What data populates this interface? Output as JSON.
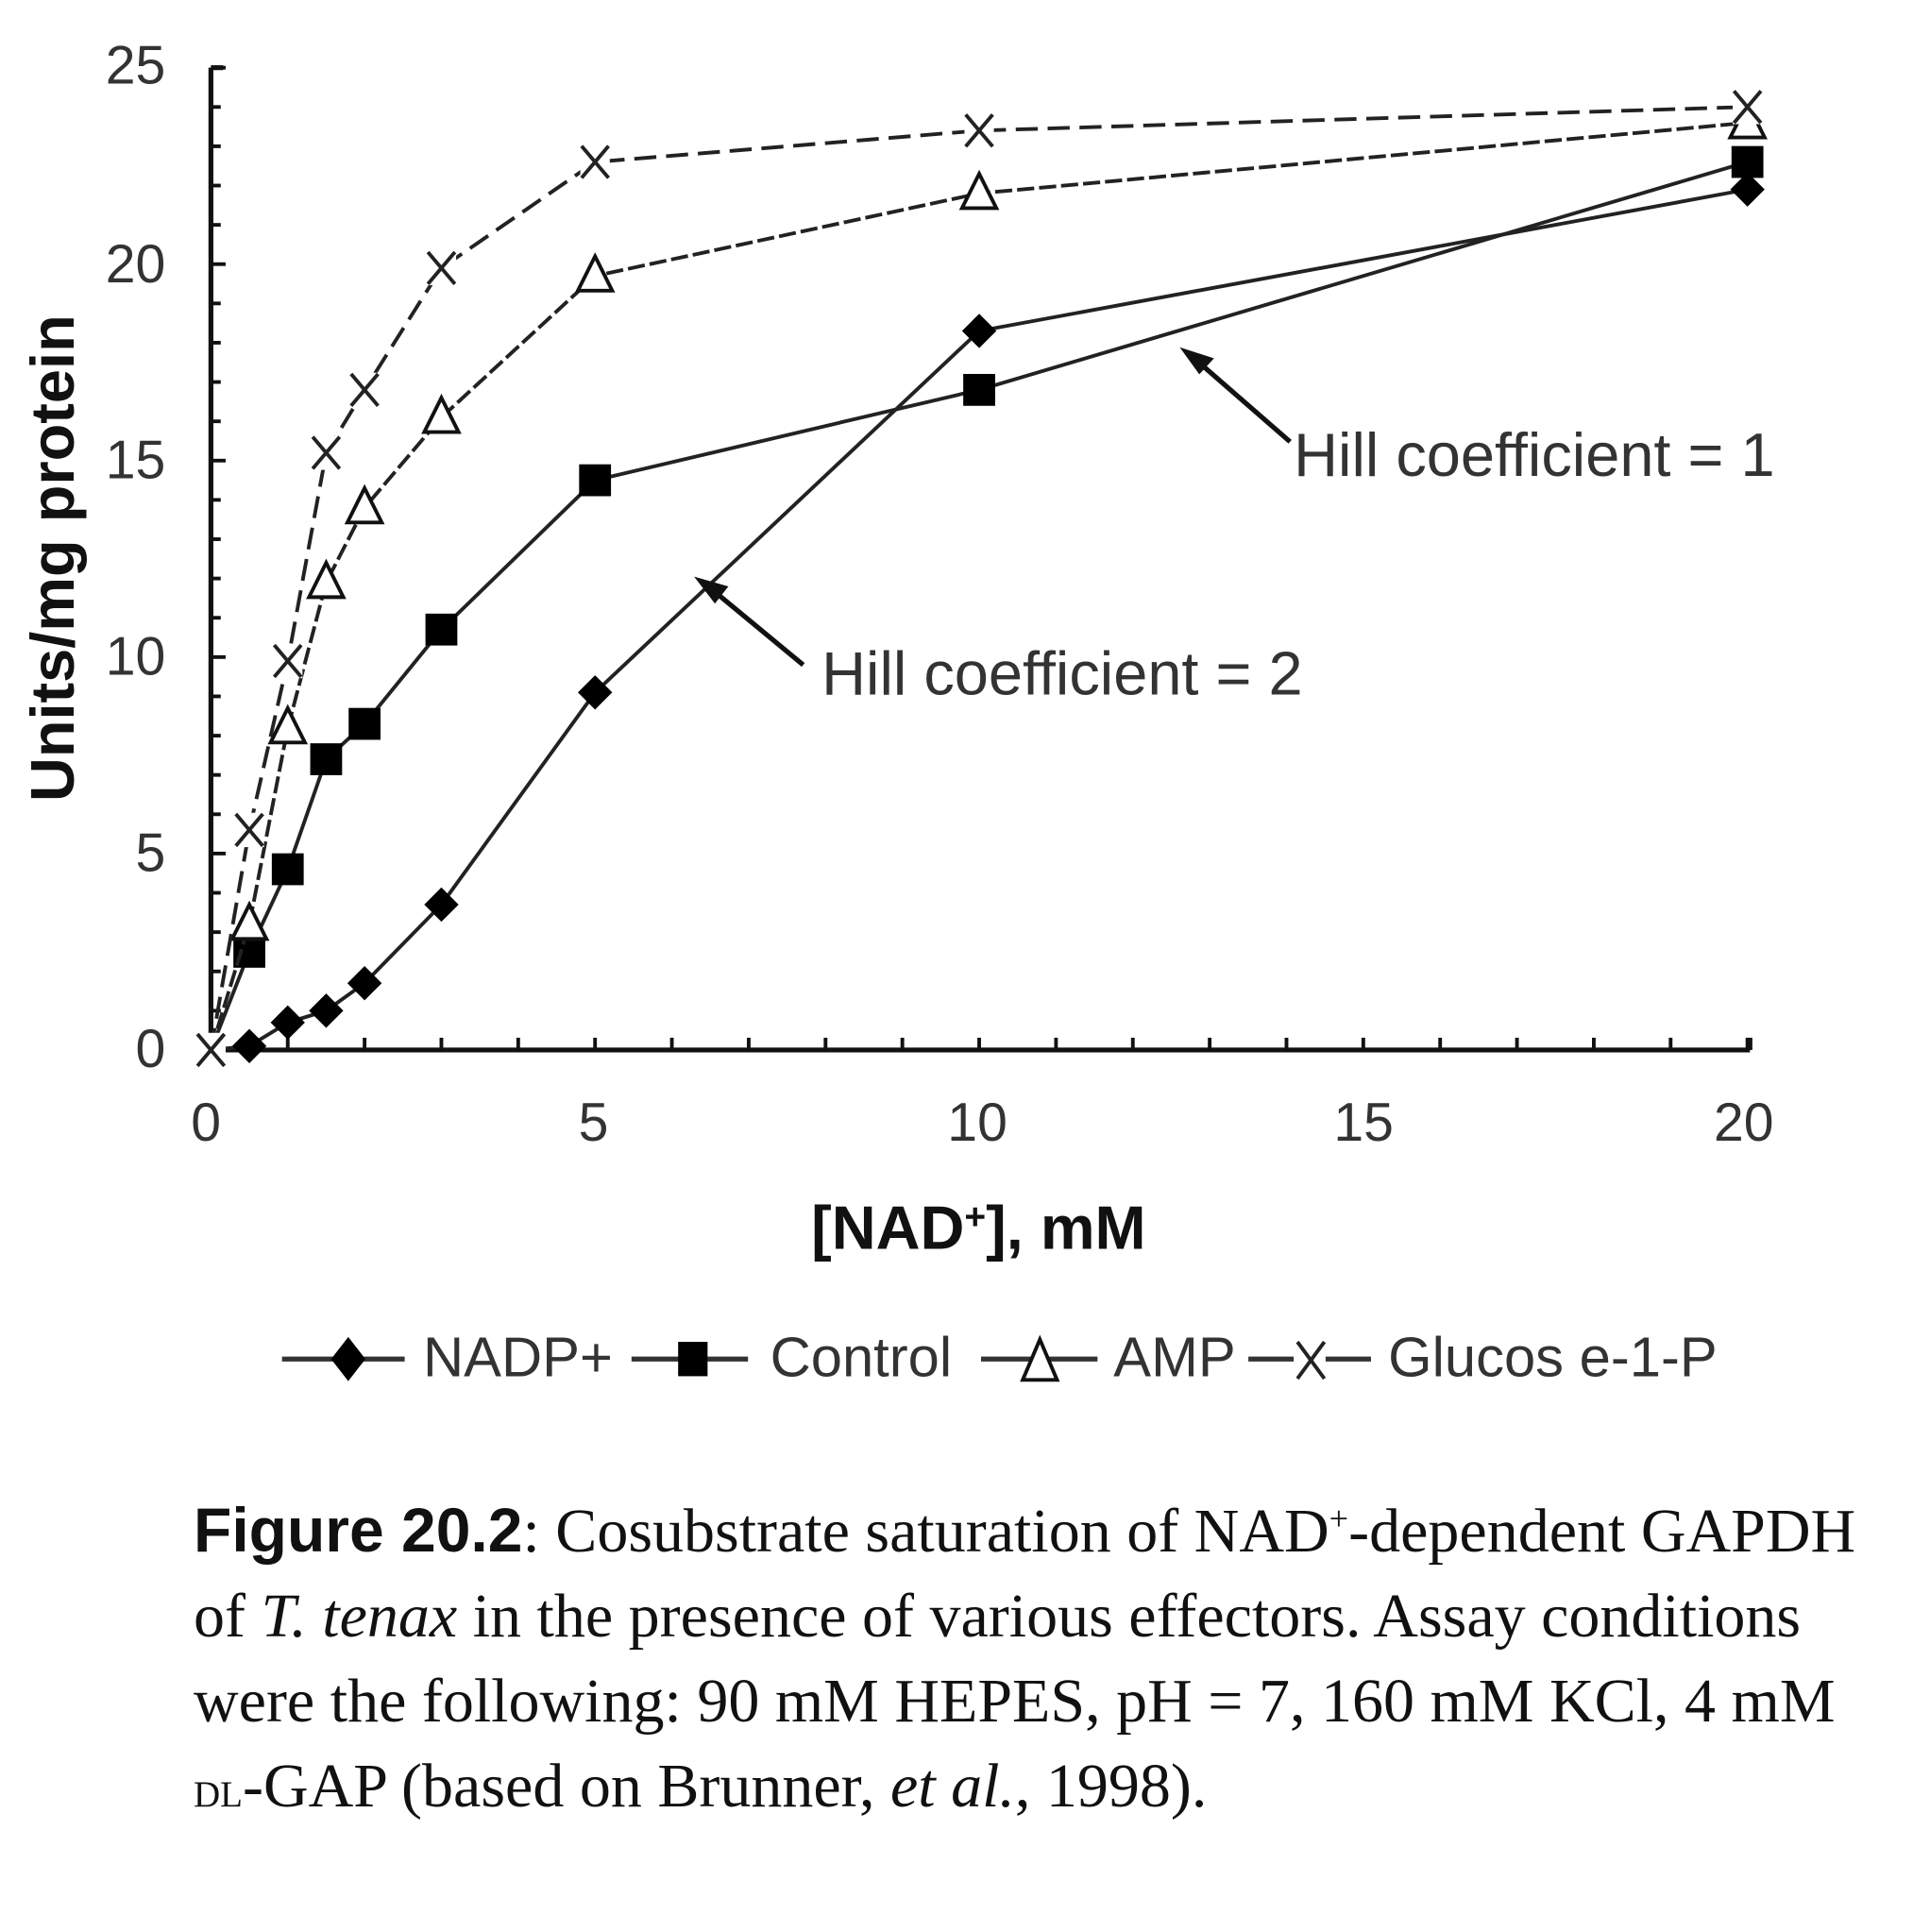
{
  "chart_data": {
    "type": "line",
    "title": "",
    "xlabel": "[NAD+], mM",
    "ylabel": "Units/mg protein",
    "xlim": [
      0,
      20
    ],
    "ylim": [
      0,
      25
    ],
    "xticks": [
      0,
      5,
      10,
      15,
      20
    ],
    "yticks": [
      0,
      5,
      10,
      15,
      20,
      25
    ],
    "grid": false,
    "legend_position": "bottom",
    "series": [
      {
        "name": "NADP+",
        "marker": "filled-diamond",
        "x": [
          0.5,
          1,
          1.5,
          2,
          3,
          5,
          10,
          20
        ],
        "y": [
          0.1,
          0.7,
          1.0,
          1.7,
          3.7,
          9.1,
          18.3,
          21.9
        ]
      },
      {
        "name": "Control",
        "marker": "filled-square",
        "x": [
          0.5,
          1,
          1.5,
          2,
          3,
          5,
          10,
          20
        ],
        "y": [
          2.5,
          4.6,
          7.4,
          8.3,
          10.7,
          14.5,
          16.8,
          22.6
        ]
      },
      {
        "name": "AMP",
        "marker": "open-triangle",
        "x": [
          0.5,
          1,
          1.5,
          2,
          3,
          5,
          10,
          20
        ],
        "y": [
          3.2,
          8.2,
          11.9,
          13.8,
          16.1,
          19.7,
          21.8,
          23.6
        ]
      },
      {
        "name": "Glucose-1-P",
        "marker": "x",
        "x": [
          0,
          0.5,
          1,
          1.5,
          2,
          3,
          5,
          10,
          20
        ],
        "y": [
          0,
          5.6,
          9.9,
          15.2,
          16.8,
          19.9,
          22.6,
          23.4,
          24.0
        ]
      }
    ],
    "annotations": [
      {
        "text": "Hill coefficient = 1",
        "arrow_to": [
          12.5,
          18.1
        ]
      },
      {
        "text": "Hill coefficient = 2",
        "arrow_to": [
          6.3,
          12.3
        ]
      }
    ]
  },
  "axis": {
    "xlabel_prefix": "[NAD",
    "xlabel_sup": "+",
    "xlabel_suffix": "], mM",
    "ylabel": "Units/mg protein",
    "xtick_labels": [
      "0",
      "5",
      "10",
      "15",
      "20"
    ],
    "ytick_labels": [
      "0",
      "5",
      "10",
      "15",
      "20",
      "25"
    ]
  },
  "annotations": {
    "hill1": "Hill coefficient = 1",
    "hill2": "Hill coefficient = 2"
  },
  "legend": {
    "items": [
      "NADP+",
      "Control",
      "AMP",
      "Glucos e-1-P"
    ]
  },
  "caption": {
    "label": "Figure 20.2",
    "p1": ": Cosubstrate saturation of NAD",
    "sup": "+",
    "p2": "-dependent GAPDH of ",
    "species": "T. tenax",
    "p3": " in the presence of various effectors. Assay conditions were the following: 90 mM HEPES, pH = 7, 160 mM KCl, 4 mM ",
    "dl": "dl",
    "p4": "-GAP (based on Brunner, ",
    "etal": "et al.",
    "p5": ", 1998)."
  }
}
